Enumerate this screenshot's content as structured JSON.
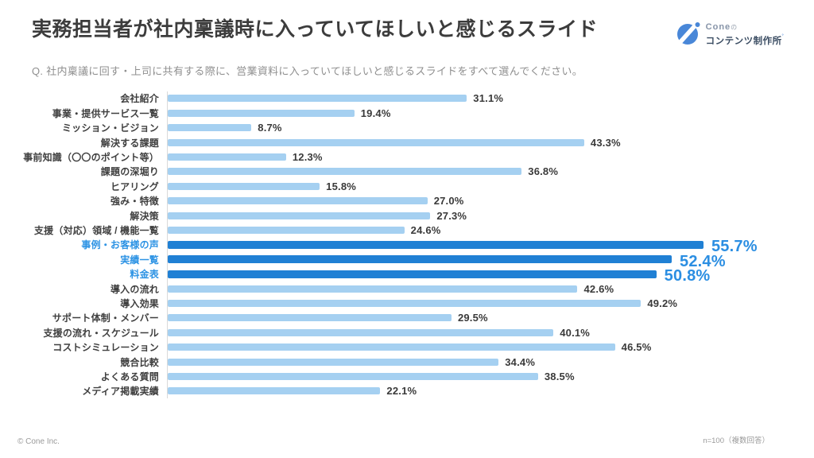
{
  "header": {
    "title": "実務担当者が社内稟議時に入っていてほしいと感じるスライド",
    "logo": {
      "brand": "Cone",
      "brand_suffix": "の",
      "brand_bottom": "コンテンツ制作所",
      "brand_mark": "˚",
      "icon": "cone-circle-slash-icon",
      "icon_color": "#4987d8"
    }
  },
  "question": "Q. 社内稟議に回す・上司に共有する際に、営業資料に入っていてほしいと感じるスライドをすべて選んでください。",
  "footer": {
    "copyright": "© Cone Inc.",
    "sample_note": "n=100（複数回答）"
  },
  "colors": {
    "bar_normal": "#a5d0f1",
    "bar_highlight": "#2080d4",
    "label_normal": "#3f3f3f",
    "label_highlight": "#2d93e4",
    "value_normal": "#3a3a3a",
    "value_highlight": "#2b8ee2",
    "title": "#3c3c3c",
    "question": "#8f8f8f",
    "axis_line": "#d9d9d9"
  },
  "chart_data": {
    "type": "bar",
    "orientation": "horizontal",
    "title": "実務担当者が社内稟議時に入っていてほしいと感じるスライド",
    "xlabel": "",
    "ylabel": "",
    "xlim": [
      0,
      60
    ],
    "grid": false,
    "legend": false,
    "categories": [
      "会社紹介",
      "事業・提供サービス一覧",
      "ミッション・ビジョン",
      "解決する課題",
      "事前知識（〇〇のポイント等）",
      "課題の深堀り",
      "ヒアリング",
      "強み・特徴",
      "解決策",
      "支援（対応）領域 / 機能一覧",
      "事例・お客様の声",
      "実績一覧",
      "料金表",
      "導入の流れ",
      "導入効果",
      "サポート体制・メンバー",
      "支援の流れ・スケジュール",
      "コストシミュレーション",
      "競合比較",
      "よくある質問",
      "メディア掲載実績"
    ],
    "values": [
      31.1,
      19.4,
      8.7,
      43.3,
      12.3,
      36.8,
      15.8,
      27.0,
      27.3,
      24.6,
      55.7,
      52.4,
      50.8,
      42.6,
      49.2,
      29.5,
      40.1,
      46.5,
      34.4,
      38.5,
      22.1
    ],
    "value_labels": [
      "31.1%",
      "19.4%",
      "8.7%",
      "43.3%",
      "12.3%",
      "36.8%",
      "15.8%",
      "27.0%",
      "27.3%",
      "24.6%",
      "55.7%",
      "52.4%",
      "50.8%",
      "42.6%",
      "49.2%",
      "29.5%",
      "40.1%",
      "46.5%",
      "34.4%",
      "38.5%",
      "22.1%"
    ],
    "highlight_indices": [
      10,
      11,
      12
    ],
    "highlighted_categories": [
      "事例・お客様の声",
      "実績一覧",
      "料金表"
    ]
  }
}
